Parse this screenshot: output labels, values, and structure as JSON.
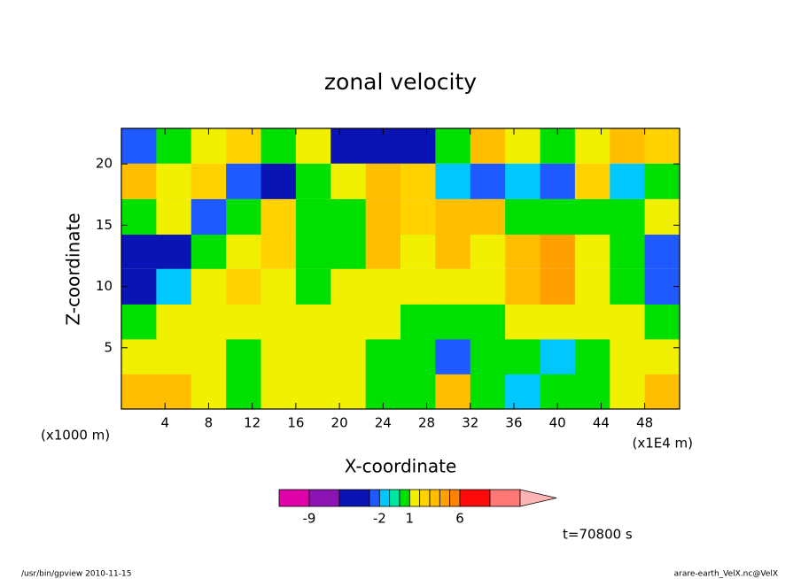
{
  "chart_data": {
    "type": "contour",
    "title": "zonal velocity",
    "x_label": "X-coordinate",
    "y_label": "Z-coordinate",
    "x_unit_left": "(x1000 m)",
    "x_unit_right": "(x1E4 m)",
    "time_label": "t=70800 s",
    "footer_left": "/usr/bin/gpview  2010-11-15",
    "footer_right": "arare-earth_VelX.nc@VelX",
    "xlim": [
      0,
      51.2
    ],
    "ylim": [
      0,
      22.9
    ],
    "xticks": [
      4,
      8,
      12,
      16,
      20,
      24,
      28,
      32,
      36,
      40,
      44,
      48
    ],
    "yticks": [
      5,
      10,
      15,
      20
    ],
    "x": [
      1.6,
      4.8,
      8,
      11.2,
      14.4,
      17.6,
      20.8,
      24,
      27.2,
      30.4,
      33.6,
      36.8,
      40,
      43.2,
      46.4,
      49.6
    ],
    "y": [
      1.43,
      4.3,
      7.15,
      10,
      12.9,
      15.7,
      18.6,
      21.5
    ],
    "z": [
      [
        3,
        3,
        1.5,
        0.5,
        1.5,
        1.5,
        1.5,
        0.5,
        0.5,
        3,
        0.5,
        -1.5,
        0.5,
        0.5,
        1.5,
        3
      ],
      [
        1.5,
        1.5,
        1.5,
        0.5,
        1.5,
        1.5,
        1.5,
        0.5,
        0.5,
        -2.5,
        0.5,
        0.5,
        -1.5,
        0.5,
        1.5,
        1.5
      ],
      [
        0.5,
        1.5,
        1.5,
        1.5,
        1.5,
        1.5,
        1.5,
        1.5,
        0.5,
        0.5,
        0.5,
        1.5,
        1.5,
        1.5,
        1.5,
        0.5
      ],
      [
        -4.5,
        -1.5,
        1.5,
        2.5,
        1.5,
        0.5,
        1.5,
        1.5,
        1.5,
        1.5,
        1.5,
        3.5,
        4.5,
        1.5,
        0.5,
        -2.5
      ],
      [
        -5,
        -4,
        0.5,
        1.5,
        2.5,
        0.5,
        0.5,
        3,
        1.5,
        3.5,
        1.5,
        3.5,
        4.5,
        1.5,
        0.5,
        -3
      ],
      [
        0.5,
        1.5,
        -3,
        0.5,
        2.5,
        0.5,
        0.5,
        3.5,
        2.5,
        3.5,
        3.5,
        0.5,
        0.5,
        0.5,
        0.5,
        1.5
      ],
      [
        3.5,
        1.5,
        2.5,
        -3,
        -4.5,
        0.5,
        1.5,
        3.5,
        2.5,
        -1.5,
        -3,
        -1.5,
        -2.5,
        2.5,
        -1.5,
        0.5
      ],
      [
        -2.5,
        0.5,
        1.5,
        2.5,
        0.5,
        1.5,
        -4.5,
        -5,
        -5,
        0.5,
        3,
        1.5,
        0.5,
        1.5,
        3.5,
        2.5
      ]
    ],
    "levels": [
      -12,
      -9,
      -6,
      -3,
      -2,
      -1,
      0,
      1,
      2,
      3,
      4,
      5,
      6,
      9,
      12
    ],
    "colors": [
      "#e000a8",
      "#8c14b4",
      "#0a14b4",
      "#1e5aff",
      "#00c8ff",
      "#00e6a0",
      "#00e000",
      "#f0f000",
      "#ffd200",
      "#ffbe00",
      "#ffa000",
      "#ff8200",
      "#ff0a0a",
      "#ff7878",
      "#ffb4b4"
    ],
    "colorbar_ticks": [
      -9,
      -2,
      1,
      6
    ]
  }
}
